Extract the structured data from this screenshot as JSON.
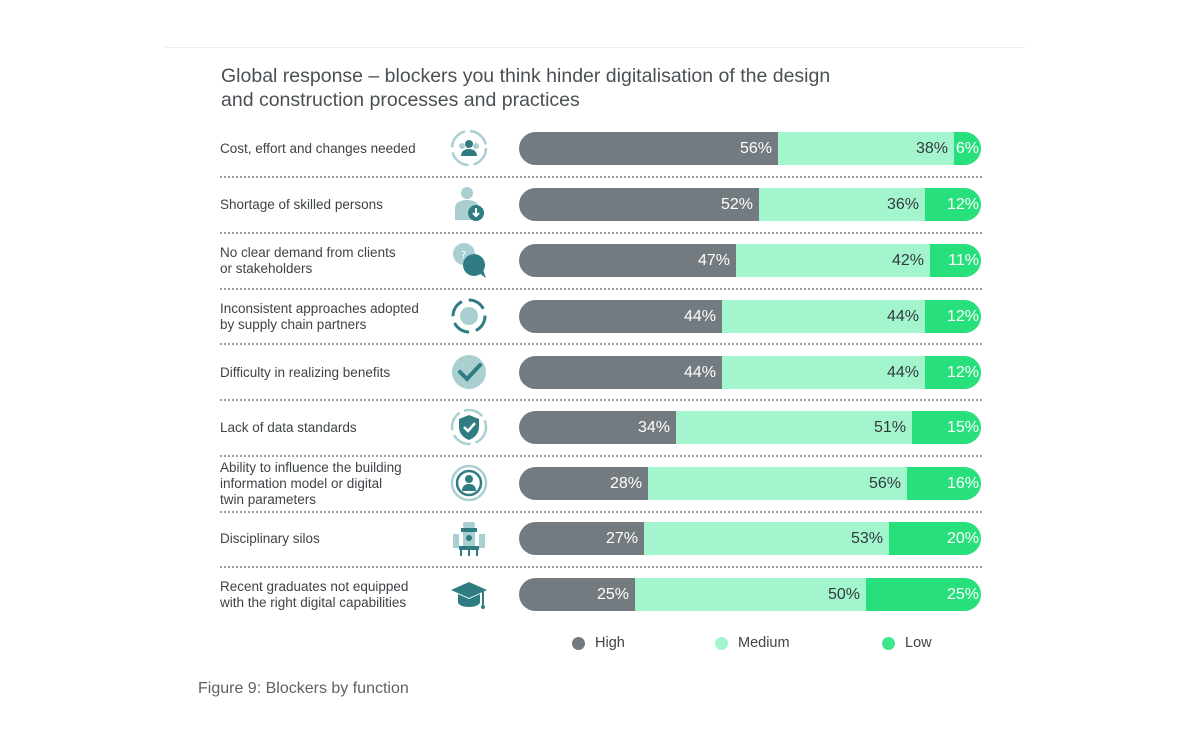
{
  "chart_data": {
    "type": "bar",
    "stacked": true,
    "orientation": "horizontal",
    "title": "Global response – blockers you think hinder digitalisation of the design and construction processes and practices",
    "title_lines": [
      "Global response – blockers you think hinder digitalisation of the design",
      "and construction processes and practices"
    ],
    "categories": [
      "Cost, effort and changes needed",
      "Shortage of skilled persons",
      "No clear demand from clients or stakeholders",
      "Inconsistent approaches adopted by supply chain partners",
      "Difficulty in realizing benefits",
      "Lack of data standards",
      "Ability to influence the building information model or digital twin parameters",
      "Disciplinary silos",
      "Recent graduates not equipped with the right digital capabilities"
    ],
    "category_lines": [
      [
        "Cost, effort and changes needed"
      ],
      [
        "Shortage of skilled persons"
      ],
      [
        "No clear demand from clients",
        "or stakeholders"
      ],
      [
        "Inconsistent approaches adopted",
        "by supply chain partners"
      ],
      [
        "Difficulty in realizing benefits"
      ],
      [
        "Lack of data standards"
      ],
      [
        "Ability to influence the building",
        "information model or digital",
        "twin parameters"
      ],
      [
        "Disciplinary silos"
      ],
      [
        "Recent graduates not equipped",
        "with the right digital capabilities"
      ]
    ],
    "icons": [
      "people-cycle-icon",
      "person-download-icon",
      "speech-bubbles-icon",
      "circular-arrows-icon",
      "checkmark-icon",
      "shield-check-icon",
      "person-target-icon",
      "tower-silo-icon",
      "graduation-cap-icon"
    ],
    "series": [
      {
        "name": "High",
        "color": "#737b80",
        "values": [
          56,
          52,
          47,
          44,
          44,
          34,
          28,
          27,
          25
        ]
      },
      {
        "name": "Medium",
        "color": "#a3f5cd",
        "values": [
          38,
          36,
          42,
          44,
          44,
          51,
          56,
          53,
          50
        ]
      },
      {
        "name": "Low",
        "color": "#27e07c",
        "values": [
          6,
          12,
          11,
          12,
          12,
          15,
          16,
          20,
          25
        ]
      }
    ],
    "value_suffix": "%",
    "xlim": [
      0,
      100
    ],
    "legend_position": "bottom",
    "grid": false
  },
  "caption": "Figure 9: Blockers by function"
}
